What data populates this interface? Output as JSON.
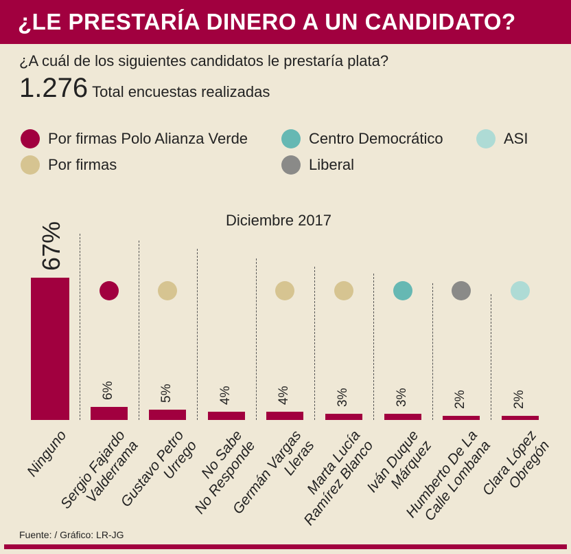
{
  "header": {
    "title": "¿LE PRESTARÍA DINERO A UN CANDIDATO?"
  },
  "question": "¿A cuál de los siguientes candidatos le prestaría plata?",
  "total": {
    "value": "1.276",
    "label": "Total encuestas realizadas"
  },
  "source": "Fuente: / Gráfico: LR-JG",
  "chart_data": {
    "type": "bar",
    "subtitle": "Diciembre 2017",
    "legend": [
      {
        "name": "Por firmas Polo Alianza Verde",
        "color": "#a1003f"
      },
      {
        "name": "Centro Democrático",
        "color": "#66b8b3"
      },
      {
        "name": "ASI",
        "color": "#aedbd5"
      },
      {
        "name": "Por firmas",
        "color": "#d6c491"
      },
      {
        "name": "Liberal",
        "color": "#8a8a88"
      }
    ],
    "categories": [
      [
        "Ninguno",
        ""
      ],
      [
        "Sergio Fajardo",
        "Valderrama"
      ],
      [
        "Gustavo Petro",
        "Urrego"
      ],
      [
        "No Sabe",
        "No Responde"
      ],
      [
        "Germán Vargas",
        "Lleras"
      ],
      [
        "Marta Lucía",
        "Ramírez Blanco"
      ],
      [
        "Iván Duque",
        "Márquez"
      ],
      [
        "Humberto De La",
        "Calle Lombana"
      ],
      [
        "Clara López",
        "Obregón"
      ]
    ],
    "values": [
      67,
      6,
      5,
      4,
      4,
      3,
      3,
      2,
      2
    ],
    "labels": [
      "67%",
      "6%",
      "5%",
      "4%",
      "4%",
      "3%",
      "3%",
      "2%",
      "2%"
    ],
    "party_colors": [
      null,
      "#a1003f",
      "#d6c491",
      null,
      "#d6c491",
      "#d6c491",
      "#66b8b3",
      "#8a8a88",
      "#aedbd5"
    ],
    "ylim": [
      0,
      70
    ]
  }
}
